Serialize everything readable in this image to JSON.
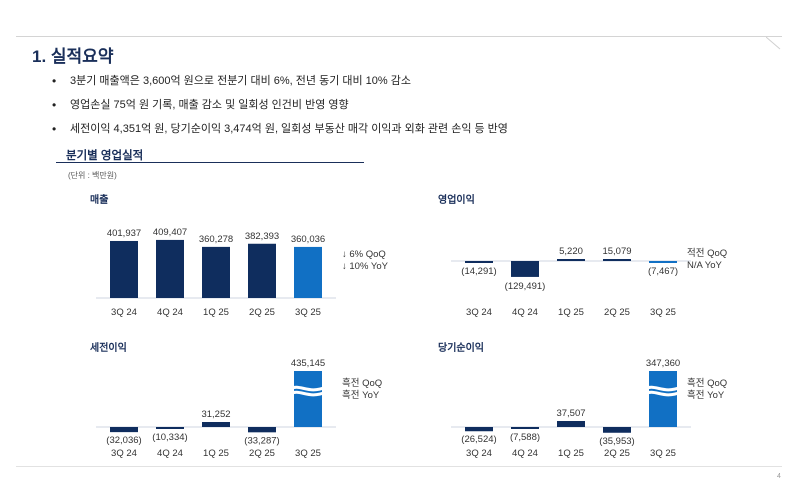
{
  "page": {
    "title": "1. 실적요약",
    "bullets": [
      "3분기 매출액은 3,600억 원으로 전분기 대비 6%, 전년 동기 대비 10% 감소",
      "영업손실 75억 원 기록, 매출 감소 및 일회성 인건비 반영 영향",
      "세전이익 4,351억 원, 당기순이익 3,474억 원, 일회성 부동산 매각 이익과 외화 관련 손익 등 반영"
    ],
    "section_title": "분기별 영업실적",
    "unit": "(단위 : 백만원)",
    "page_number": "4"
  },
  "colors": {
    "navy": "#0f2d5e",
    "current": "#1170c4",
    "title": "#1a2f5a"
  },
  "chart_data": [
    {
      "type": "bar",
      "title": "매출",
      "categories": [
        "3Q 24",
        "4Q 24",
        "1Q 25",
        "2Q 25",
        "3Q 25"
      ],
      "values": [
        401937,
        409407,
        360278,
        382393,
        360036
      ],
      "labels": [
        "401,937",
        "409,407",
        "360,278",
        "382,393",
        "360,036"
      ],
      "ylim": [
        0,
        430000
      ],
      "annotations": [
        "↓ 6% QoQ",
        "↓ 10% YoY"
      ]
    },
    {
      "type": "bar",
      "title": "영업이익",
      "categories": [
        "3Q 24",
        "4Q 24",
        "1Q 25",
        "2Q 25",
        "3Q 25"
      ],
      "values": [
        -14291,
        -129491,
        5220,
        15079,
        -7467
      ],
      "labels": [
        "(14,291)",
        "(129,491)",
        "5,220",
        "15,079",
        "(7,467)"
      ],
      "ylim": [
        -140000,
        20000
      ],
      "annotations": [
        "적전 QoQ",
        "N/A YoY"
      ]
    },
    {
      "type": "bar",
      "title": "세전이익",
      "categories": [
        "3Q 24",
        "4Q 24",
        "1Q 25",
        "2Q 25",
        "3Q 25"
      ],
      "values": [
        -32036,
        -10334,
        31252,
        -33287,
        435145
      ],
      "labels": [
        "(32,036)",
        "(10,334)",
        "31,252",
        "(33,287)",
        "435,145"
      ],
      "axis_break": true,
      "annotations": [
        "흑전 QoQ",
        "흑전 YoY"
      ]
    },
    {
      "type": "bar",
      "title": "당기순이익",
      "categories": [
        "3Q 24",
        "4Q 24",
        "1Q 25",
        "2Q 25",
        "3Q 25"
      ],
      "values": [
        -26524,
        -7588,
        37507,
        -35953,
        347360
      ],
      "labels": [
        "(26,524)",
        "(7,588)",
        "37,507",
        "(35,953)",
        "347,360"
      ],
      "axis_break": true,
      "annotations": [
        "흑전 QoQ",
        "흑전 YoY"
      ]
    }
  ]
}
